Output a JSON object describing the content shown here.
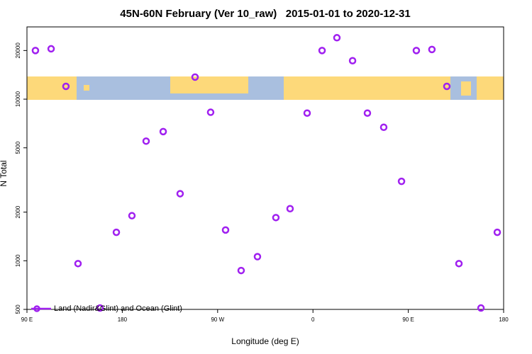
{
  "chart_data": {
    "type": "scatter",
    "title": "45N-60N February (Ver 10_raw)   2015-01-01 to 2020-12-31",
    "x_label": "Longitude (deg E)",
    "y_label": "N Total",
    "log_y": true,
    "legend": "bottom left",
    "xlim": [
      90,
      540
    ],
    "ylim": [
      500,
      28000
    ],
    "xticks": [
      {
        "value": 90,
        "label": "90 E"
      },
      180,
      {
        "value": 270,
        "label": "90 W"
      },
      {
        "value": 360,
        "label": "0"
      },
      {
        "value": 450,
        "label": "90 E"
      },
      {
        "value": 540,
        "label": "180"
      }
    ],
    "yticks": [
      500,
      1000,
      2000,
      5000,
      10000,
      20000
    ],
    "series": [
      {
        "name": "Land (Nadir&Glint) and Ocean (Glint)",
        "color": "#a020f0",
        "x": [
          98,
          112.8,
          126.8,
          138.2,
          159,
          174.4,
          189.1,
          202.5,
          218.6,
          234.6,
          248.7,
          263.4,
          277.5,
          292.2,
          307.6,
          325,
          338.4,
          354.5,
          368.6,
          382.6,
          397.4,
          411.4,
          426.8,
          443.6,
          457.6,
          472.3,
          486.4,
          497.8,
          518.6,
          534
        ],
        "values": [
          20000,
          20500,
          12000,
          960,
          510,
          1500,
          1900,
          5500,
          6300,
          2600,
          13700,
          8300,
          1550,
          870,
          1060,
          1850,
          2100,
          8200,
          20000,
          24000,
          17300,
          8200,
          6700,
          3100,
          20000,
          20300,
          12000,
          960,
          510,
          1500
        ]
      }
    ]
  }
}
